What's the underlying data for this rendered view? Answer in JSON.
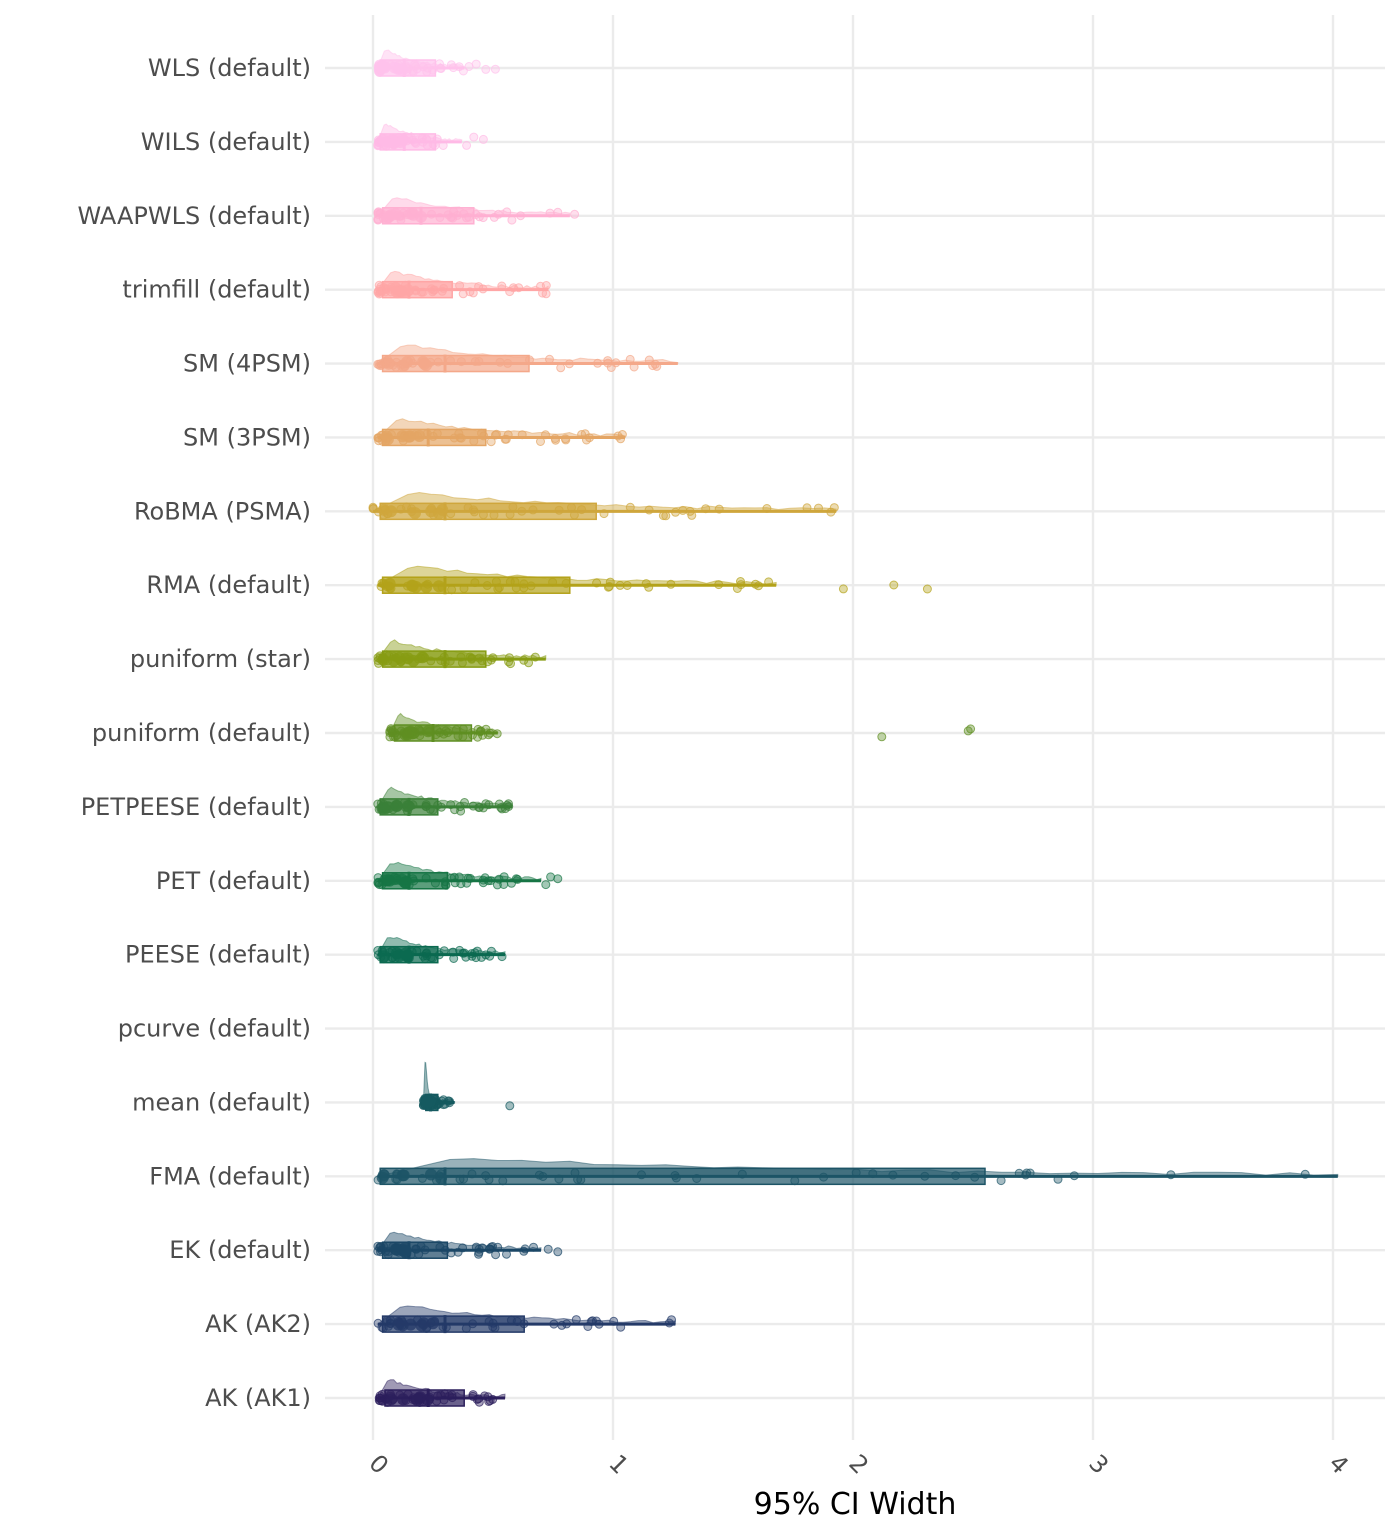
{
  "chart_data": {
    "type": "raincloud",
    "title": "",
    "xlabel": "95% CI Width",
    "ylabel": "",
    "xlim": [
      -0.2,
      4.2
    ],
    "x_ticks": [
      0,
      1,
      2,
      3,
      4
    ],
    "x_tick_labels": [
      "0",
      "1",
      "2",
      "3",
      "4"
    ],
    "grid": true,
    "legend": "none",
    "series": [
      {
        "name": "WLS (default)",
        "color": "#ffc2ec",
        "box": [
          0.02,
          0.03,
          0.13,
          0.26,
          0.38
        ],
        "outliers": [
          0.4,
          0.43,
          0.47,
          0.51
        ]
      },
      {
        "name": "WILS (default)",
        "color": "#ffbae6",
        "box": [
          0.02,
          0.03,
          0.13,
          0.26,
          0.37
        ],
        "outliers": [
          0.39,
          0.42,
          0.46
        ]
      },
      {
        "name": "WAAPWLS (default)",
        "color": "#ffb0d2",
        "box": [
          0.02,
          0.04,
          0.2,
          0.42,
          0.82
        ],
        "outliers": [
          0.84
        ]
      },
      {
        "name": "trimfill (default)",
        "color": "#ffa6a6",
        "box": [
          0.02,
          0.04,
          0.15,
          0.33,
          0.73
        ],
        "outliers": []
      },
      {
        "name": "SM (4PSM)",
        "color": "#f4a88a",
        "box": [
          0.02,
          0.04,
          0.3,
          0.65,
          1.27
        ],
        "outliers": []
      },
      {
        "name": "SM (3PSM)",
        "color": "#e4a564",
        "box": [
          0.02,
          0.04,
          0.23,
          0.47,
          1.05
        ],
        "outliers": []
      },
      {
        "name": "RoBMA (PSMA)",
        "color": "#cfa63c",
        "box": [
          0.0,
          0.03,
          0.3,
          0.93,
          1.93
        ],
        "outliers": []
      },
      {
        "name": "RMA (default)",
        "color": "#b3a21a",
        "box": [
          0.02,
          0.04,
          0.3,
          0.82,
          1.68
        ],
        "outliers": [
          1.96,
          2.17,
          2.31
        ]
      },
      {
        "name": "puniform (star)",
        "color": "#879c13",
        "box": [
          0.02,
          0.04,
          0.3,
          0.47,
          0.72
        ],
        "outliers": []
      },
      {
        "name": "puniform (default)",
        "color": "#5f8f22",
        "box": [
          0.07,
          0.09,
          0.25,
          0.41,
          0.52
        ],
        "outliers": [
          2.12,
          2.48,
          2.49
        ]
      },
      {
        "name": "PETPEESE (default)",
        "color": "#3a8038",
        "box": [
          0.02,
          0.03,
          0.15,
          0.27,
          0.58
        ],
        "outliers": []
      },
      {
        "name": "PET (default)",
        "color": "#177545",
        "box": [
          0.02,
          0.04,
          0.15,
          0.31,
          0.7
        ],
        "outliers": [
          0.72,
          0.74,
          0.77
        ]
      },
      {
        "name": "PEESE (default)",
        "color": "#0b6a50",
        "box": [
          0.02,
          0.03,
          0.15,
          0.27,
          0.55
        ],
        "outliers": []
      },
      {
        "name": "pcurve (default)",
        "color": "#0e6258",
        "box": null,
        "outliers": []
      },
      {
        "name": "mean (default)",
        "color": "#155a60",
        "box": [
          0.21,
          0.22,
          0.24,
          0.27,
          0.34
        ],
        "outliers": [
          0.57
        ]
      },
      {
        "name": "FMA (default)",
        "color": "#1d5466",
        "box": [
          0.02,
          0.03,
          0.3,
          2.55,
          4.02
        ],
        "outliers": []
      },
      {
        "name": "EK (default)",
        "color": "#1b4766",
        "box": [
          0.02,
          0.04,
          0.15,
          0.31,
          0.7
        ],
        "outliers": [
          0.73,
          0.77
        ]
      },
      {
        "name": "AK (AK2)",
        "color": "#243a68",
        "box": [
          0.02,
          0.04,
          0.3,
          0.63,
          1.26
        ],
        "outliers": []
      },
      {
        "name": "AK (AK1)",
        "color": "#2c1f5c",
        "box": [
          0.02,
          0.05,
          0.23,
          0.38,
          0.55
        ],
        "outliers": []
      }
    ]
  }
}
